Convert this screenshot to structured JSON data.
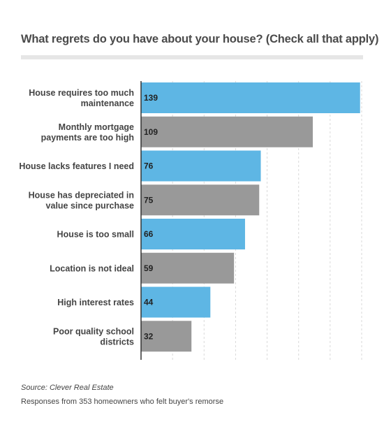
{
  "chart_data": {
    "type": "bar",
    "orientation": "horizontal",
    "title": "What regrets do you have about your house? (Check all that apply)",
    "categories": [
      [
        "House requires too much",
        "maintenance"
      ],
      [
        "Monthly mortgage",
        "payments are too high"
      ],
      [
        "House lacks features I need"
      ],
      [
        "House has depreciated in",
        "value since purchase"
      ],
      [
        "House is too small"
      ],
      [
        "Location is not ideal"
      ],
      [
        "High interest rates"
      ],
      [
        "Poor quality school",
        "districts"
      ]
    ],
    "values": [
      139,
      109,
      76,
      75,
      66,
      59,
      44,
      32
    ],
    "xlim": [
      0,
      140
    ],
    "grid": true,
    "colors": [
      "#5eb6e4",
      "#999999"
    ]
  },
  "footer": {
    "source": "Source: Clever Real Estate",
    "note": "Responses from 353 homeowners who felt buyer's remorse"
  }
}
